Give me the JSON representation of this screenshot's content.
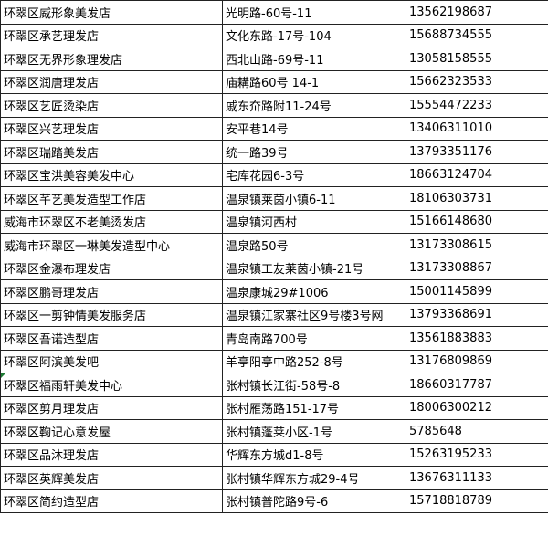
{
  "rows": [
    {
      "name": "环翠区威形象美发店",
      "address": "光明路-60号-11",
      "phone": "13562198687"
    },
    {
      "name": "环翠区承艺理发店",
      "address": "文化东路-17号-104",
      "phone": "15688734555"
    },
    {
      "name": "环翠区无界形象理发店",
      "address": "西北山路-69号-11",
      "phone": "13058158555"
    },
    {
      "name": "环翠区润唐理发店",
      "address": "庙耩路60号 14-1",
      "phone": "15662323533"
    },
    {
      "name": "环翠区艺匠烫染店",
      "address": "戚东夼路附11-24号",
      "phone": "15554472233"
    },
    {
      "name": "环翠区兴艺理发店",
      "address": "安平巷14号",
      "phone": "13406311010"
    },
    {
      "name": "环翠区瑞踏美发店",
      "address": "统一路39号",
      "phone": "13793351176"
    },
    {
      "name": "环翠区宝洪美容美发中心",
      "address": "宅库花园6-3号",
      "phone": "18663124704"
    },
    {
      "name": "环翠区芊艺美发造型工作店",
      "address": "温泉镇莱茵小镇6-11",
      "phone": "18106303731"
    },
    {
      "name": "威海市环翠区不老美烫发店",
      "address": "温泉镇河西村",
      "phone": "15166148680"
    },
    {
      "name": "威海市环翠区一琳美发造型中心",
      "address": "温泉路50号",
      "phone": "13173308615"
    },
    {
      "name": "环翠区金瀑布理发店",
      "address": "温泉镇工友莱茵小镇-21号",
      "phone": "13173308867"
    },
    {
      "name": "环翠区鹏哥理发店",
      "address": "温泉康城29#1006",
      "phone": "15001145899"
    },
    {
      "name": "环翠区一剪钟情美发服务店",
      "address": "温泉镇江家寨社区9号楼3号网",
      "phone": "13793368691"
    },
    {
      "name": "环翠区吾诺造型店",
      "address": "青岛南路700号",
      "phone": "13561883883"
    },
    {
      "name": "环翠区阿滨美发吧",
      "address": "羊亭阳亭中路252-8号",
      "phone": "13176809869"
    },
    {
      "name": "环翠区福雨轩美发中心",
      "address": "张村镇长江街-58号-8",
      "phone": "18660317787"
    },
    {
      "name": "环翠区剪月理发店",
      "address": "张村雁荡路151-17号",
      "phone": "18006300212"
    },
    {
      "name": "环翠区鞠记心意发屋",
      "address": "张村镇蓬莱小区-1号",
      "phone": "5785648"
    },
    {
      "name": "环翠区品沐理发店",
      "address": "华辉东方城d1-8号",
      "phone": "15263195233"
    },
    {
      "name": "环翠区英辉美发店",
      "address": "张村镇华辉东方城29-4号",
      "phone": "13676311133"
    },
    {
      "name": "环翠区简约造型店",
      "address": "张村镇普陀路9号-6",
      "phone": "15718818789"
    }
  ],
  "comment_marker_row": 16,
  "comment_marker_color": "#1e7b34"
}
